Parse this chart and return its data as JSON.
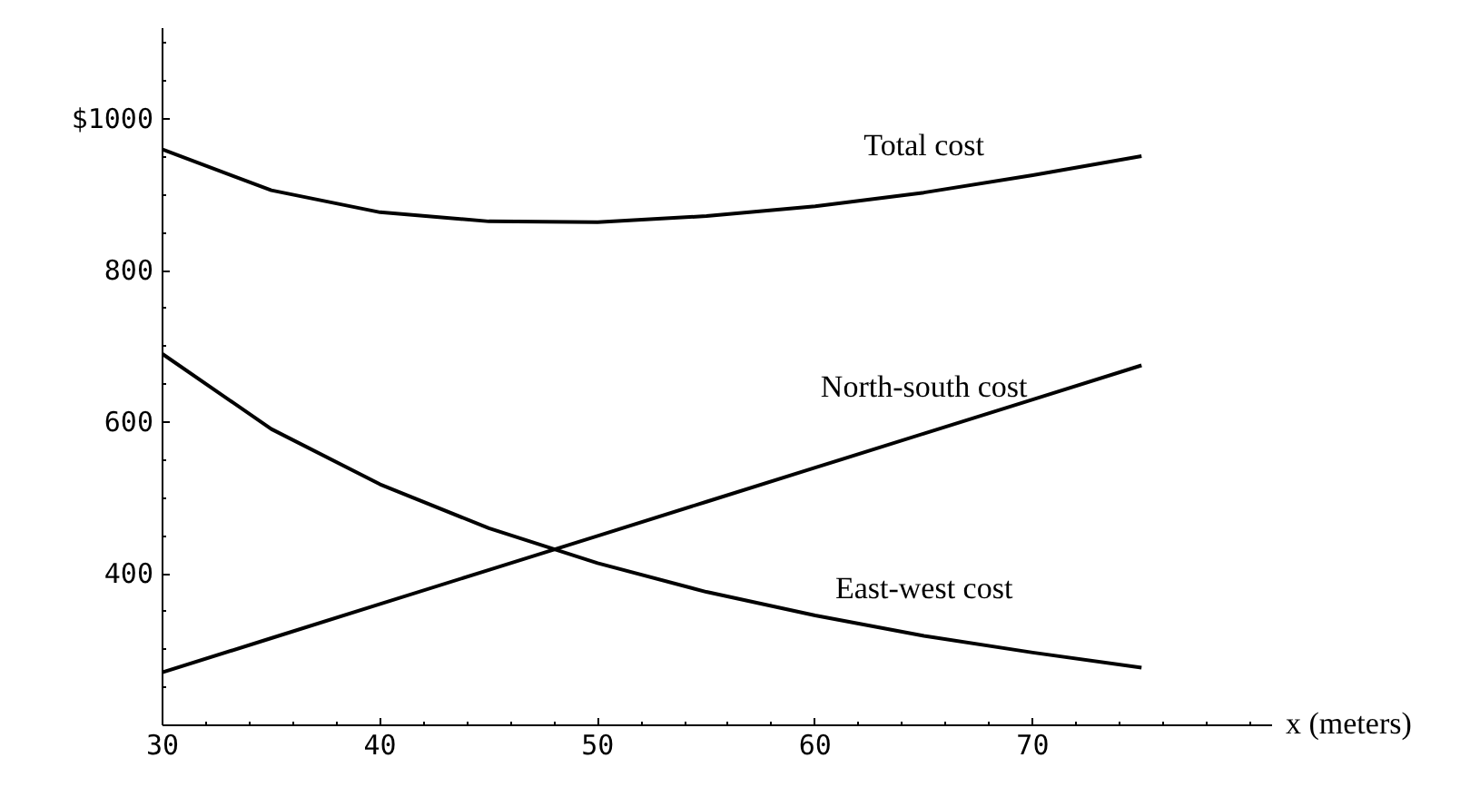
{
  "chart_data": {
    "type": "line",
    "xlabel": "x (meters)",
    "x": [
      30,
      35,
      40,
      45,
      50,
      55,
      60,
      65,
      70,
      75
    ],
    "series": [
      {
        "name": "Total cost",
        "color": "#000000",
        "values": [
          960,
          906,
          877,
          865,
          864,
          872,
          885,
          903,
          926,
          951
        ]
      },
      {
        "name": "East-west cost",
        "color": "#000000",
        "values": [
          690,
          591,
          518,
          460,
          414,
          376,
          345,
          318,
          296,
          276
        ]
      },
      {
        "name": "North-south cost",
        "color": "#000000",
        "values": [
          270,
          315,
          360,
          405,
          450,
          495,
          540,
          585,
          630,
          675
        ]
      }
    ],
    "xlim": [
      30,
      81
    ],
    "ylim": [
      200,
      1120
    ],
    "xticks": [
      30,
      40,
      50,
      60,
      70
    ],
    "yticks": [
      400,
      600,
      800,
      {
        "value": 1000,
        "label": "$1000"
      }
    ],
    "grid": false,
    "marker": "none",
    "line_style": "solid"
  }
}
